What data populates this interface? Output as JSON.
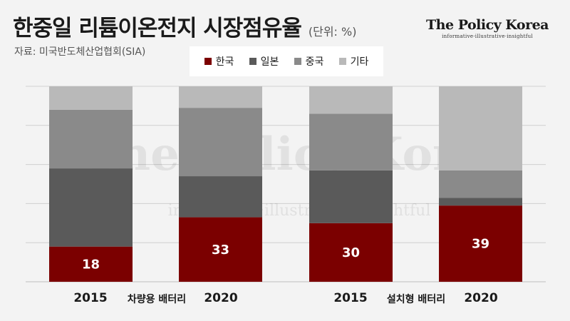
{
  "header": {
    "title": "한중일 리튬이온전지 시장점유율",
    "unit": "(단위: %)",
    "source": "자료: 미국반도체산업협회(SIA)"
  },
  "brand": {
    "name": "The Policy Korea",
    "tagline": "informative·illustrative·insightful"
  },
  "legend": [
    {
      "label": "한국",
      "color": "#7b0000"
    },
    {
      "label": "일본",
      "color": "#5a5a5a"
    },
    {
      "label": "중국",
      "color": "#8a8a8a"
    },
    {
      "label": "기타",
      "color": "#b9b9b9"
    }
  ],
  "watermark": {
    "name": "The Policy Korea",
    "tagline": "informative·illustrative·insightful"
  },
  "chart_data": {
    "type": "bar",
    "stacked": true,
    "categories": [
      "2015",
      "2020",
      "2015",
      "2020"
    ],
    "groups": [
      {
        "label": "차량용 배터리",
        "categories": [
          "2015",
          "2020"
        ]
      },
      {
        "label": "설치형 배터리",
        "categories": [
          "2015",
          "2020"
        ]
      }
    ],
    "series": [
      {
        "name": "한국",
        "color": "#7b0000",
        "values": [
          18,
          33,
          30,
          39
        ],
        "show_labels": true
      },
      {
        "name": "일본",
        "color": "#5a5a5a",
        "values": [
          40,
          21,
          27,
          4
        ],
        "show_labels": false
      },
      {
        "name": "중국",
        "color": "#8a8a8a",
        "values": [
          30,
          35,
          29,
          14
        ],
        "show_labels": false
      },
      {
        "name": "기타",
        "color": "#b9b9b9",
        "values": [
          12,
          11,
          14,
          43
        ],
        "show_labels": false
      }
    ],
    "ylim": [
      0,
      100
    ],
    "grid": true,
    "legend_position": "top"
  }
}
